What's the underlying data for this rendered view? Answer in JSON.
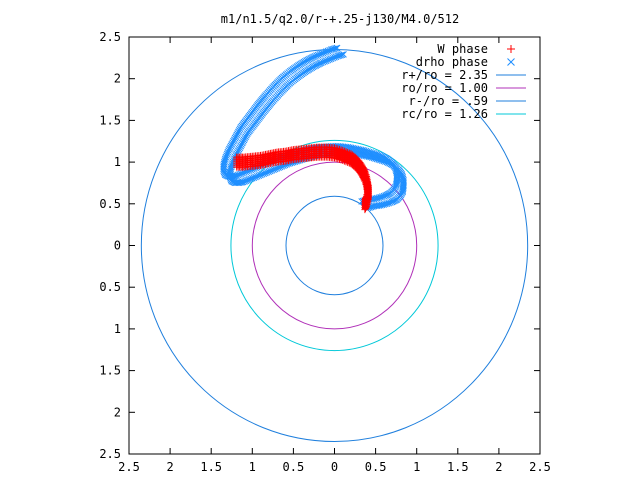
{
  "chart_data": {
    "type": "scatter",
    "title": "m1/n1.5/q2.0/r-+.25-j130/M4.0/512",
    "xlim": [
      -2.5,
      2.5
    ],
    "ylim": [
      -2.5,
      2.5
    ],
    "x_ticks": [
      -2.5,
      -2,
      -1.5,
      -1,
      -0.5,
      0,
      0.5,
      1,
      1.5,
      2,
      2.5
    ],
    "x_tick_labels": [
      "2.5",
      "2",
      "1.5",
      "1",
      "0.5",
      "0",
      "0.5",
      "1",
      "1.5",
      "2",
      "2.5"
    ],
    "y_ticks": [
      2.5,
      2,
      1.5,
      1,
      0.5,
      0,
      -0.5,
      -1,
      -1.5,
      -2,
      -2.5
    ],
    "y_tick_labels": [
      "2.5",
      "2",
      "1.5",
      "1",
      "0.5",
      "0",
      "0.5",
      "1",
      "1.5",
      "2",
      "2.5"
    ],
    "grid": false,
    "legend_position": "top-right",
    "series": [
      {
        "name": "W phase",
        "kind": "points",
        "marker": "plus",
        "color": "#ff0000",
        "x": [
          -1.19,
          -1.1,
          -1.0,
          -0.9,
          -0.8,
          -0.7,
          -0.6,
          -0.5,
          -0.4,
          -0.3,
          -0.2,
          -0.1,
          0.0,
          0.1,
          0.2,
          0.25,
          0.3,
          0.34,
          0.37,
          0.39,
          0.4,
          0.41,
          0.41,
          0.4,
          0.39,
          0.37
        ],
        "y": [
          1.0,
          1.0,
          1.01,
          1.02,
          1.04,
          1.06,
          1.07,
          1.09,
          1.1,
          1.11,
          1.12,
          1.12,
          1.11,
          1.08,
          1.04,
          1.0,
          0.95,
          0.89,
          0.83,
          0.77,
          0.71,
          0.66,
          0.61,
          0.57,
          0.53,
          0.49
        ]
      },
      {
        "name": "drho phase",
        "kind": "points",
        "marker": "cross",
        "color": "#1f8fff",
        "x": [
          0.07,
          0.0,
          -0.1,
          -0.2,
          -0.3,
          -0.4,
          -0.5,
          -0.6,
          -0.7,
          -0.8,
          -0.9,
          -1.0,
          -1.1,
          -1.18,
          -1.25,
          -1.29,
          -1.31,
          -1.31,
          -1.29,
          -1.25,
          -1.2,
          -1.15,
          -1.08,
          -1.0,
          -0.9,
          -0.8,
          -0.7,
          -0.6,
          -0.5,
          -0.4,
          -0.3,
          -0.2,
          -0.1,
          0.0,
          0.1,
          0.2,
          0.3,
          0.4,
          0.5,
          0.6,
          0.68,
          0.74,
          0.78,
          0.8,
          0.8,
          0.79,
          0.76,
          0.72,
          0.66,
          0.6,
          0.52,
          0.44,
          0.37
        ],
        "y": [
          2.33,
          2.31,
          2.27,
          2.23,
          2.18,
          2.12,
          2.05,
          1.97,
          1.87,
          1.76,
          1.64,
          1.51,
          1.38,
          1.23,
          1.1,
          1.0,
          0.92,
          0.86,
          0.81,
          0.79,
          0.79,
          0.8,
          0.83,
          0.86,
          0.9,
          0.94,
          0.98,
          1.02,
          1.05,
          1.08,
          1.11,
          1.13,
          1.14,
          1.15,
          1.15,
          1.14,
          1.12,
          1.1,
          1.07,
          1.04,
          1.0,
          0.95,
          0.89,
          0.82,
          0.75,
          0.68,
          0.63,
          0.59,
          0.56,
          0.54,
          0.52,
          0.51,
          0.49
        ]
      },
      {
        "name": "r+/ro = 2.35",
        "kind": "circle",
        "radius": 2.35,
        "color": "#1f7fdd"
      },
      {
        "name": "ro/ro = 1.00",
        "kind": "circle",
        "radius": 1.0,
        "color": "#b030b8"
      },
      {
        "name": "r-/ro = .59",
        "kind": "circle",
        "radius": 0.59,
        "color": "#1f7fdd"
      },
      {
        "name": "rc/ro = 1.26",
        "kind": "circle",
        "radius": 1.26,
        "color": "#00c8d8"
      }
    ]
  }
}
